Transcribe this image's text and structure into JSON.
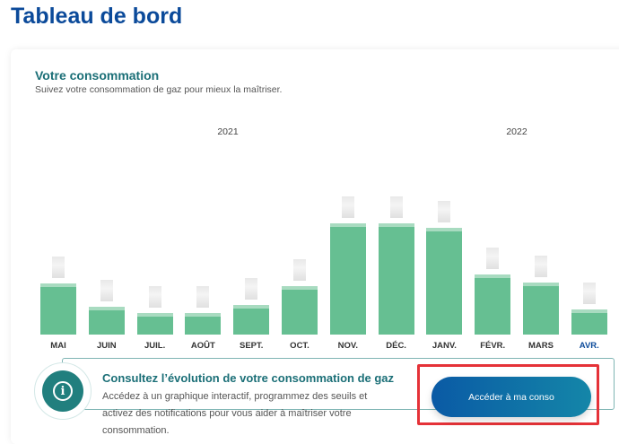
{
  "header": {
    "title": "Tableau de bord"
  },
  "section": {
    "title": "Votre consommation",
    "subtitle": "Suivez votre consommation de gaz pour mieux la maîtriser."
  },
  "chart_data": {
    "type": "bar",
    "title": "Votre consommation",
    "year_labels": [
      "2021",
      "2022"
    ],
    "categories": [
      "MAI",
      "JUIN",
      "JUIL.",
      "AOÛT",
      "SEPT.",
      "OCT.",
      "NOV.",
      "DÉC.",
      "JANV.",
      "FÉVR.",
      "MARS",
      "AVR."
    ],
    "values": [
      57,
      31,
      24,
      24,
      33,
      54,
      124,
      124,
      119,
      67,
      58,
      28
    ],
    "value_labels_visible": false,
    "current_category": "AVR.",
    "bar_color": "#66bf92"
  },
  "info": {
    "title": "Consultez l’évolution de votre consommation de gaz",
    "text": "Accédez à un graphique interactif, programmez des seuils et activez des notifications pour vous aider à maîtriser votre consommation.",
    "button": "Accéder à ma conso",
    "icon": "info-icon"
  }
}
